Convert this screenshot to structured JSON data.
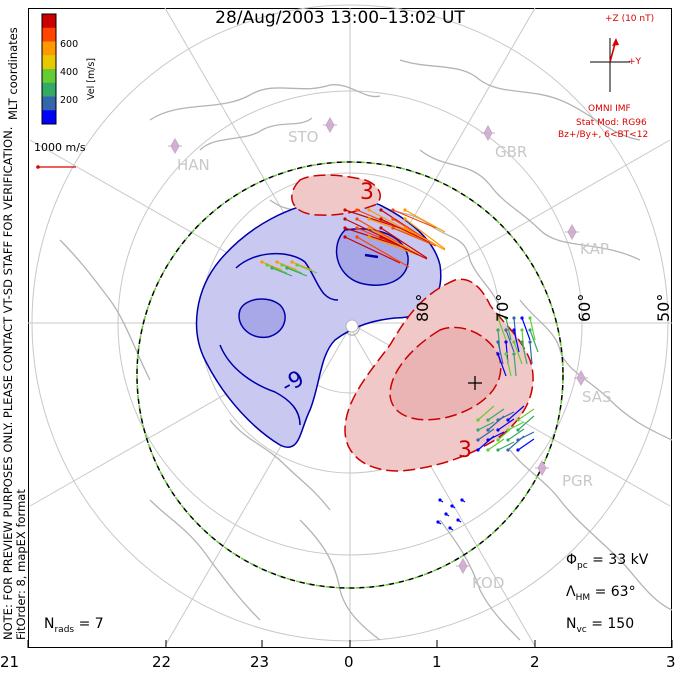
{
  "title": "28/Aug/2003 13:00–13:02 UT",
  "side_note": {
    "line1": "NOTE: FOR PREVIEW PURPOSES ONLY. PLEASE CONTACT VT-SD STAFF FOR VERIFICATION.",
    "line2": "FitOrder: 8, mapEX format",
    "coords": "MLT coordinates"
  },
  "colorbar": {
    "label": "Vel [m/s]",
    "ticks": [
      "600",
      "400",
      "200"
    ],
    "colors": [
      "#cc0000",
      "#ff4400",
      "#ff9900",
      "#e8c800",
      "#66cc33",
      "#33aa66",
      "#3366aa",
      "#0000ff"
    ]
  },
  "ref_vector": {
    "label": "1000 m/s",
    "color": "#d00"
  },
  "imf": {
    "z_label": "+Z (10 nT)",
    "y_label": "+Y",
    "source": "OMNI IMF",
    "stat_mod": "Stat Mod: RG96",
    "condition": "Bz+/By+, 6<BT<12"
  },
  "stations": [
    "HAN",
    "STO",
    "GBR",
    "KAP",
    "SAS",
    "PGR",
    "KOD"
  ],
  "latitude_labels": [
    "80°",
    "70°",
    "60°",
    "50°"
  ],
  "contour_labels": {
    "positive": "3",
    "negative": "-9"
  },
  "mlt_ticks": [
    "21",
    "22",
    "23",
    "0",
    "1",
    "2",
    "3"
  ],
  "stats": {
    "phi_pc": {
      "symbol": "Φ",
      "sub": "pc",
      "value": "= 33 kV"
    },
    "lambda_hm": {
      "symbol": "Λ",
      "sub": "HM",
      "value": "= 63°"
    },
    "n_vc": {
      "symbol": "N",
      "sub": "vc",
      "value": "= 150"
    },
    "n_rads": {
      "symbol": "N",
      "sub": "rads",
      "value": "= 7"
    }
  },
  "colors": {
    "positive_cell": "#f0c8c8",
    "negative_cell": "#c8c8f0",
    "positive_line": "#cc0000",
    "negative_line": "#0000aa",
    "grid": "#c8c8c8",
    "coast": "#b4b4b4"
  }
}
